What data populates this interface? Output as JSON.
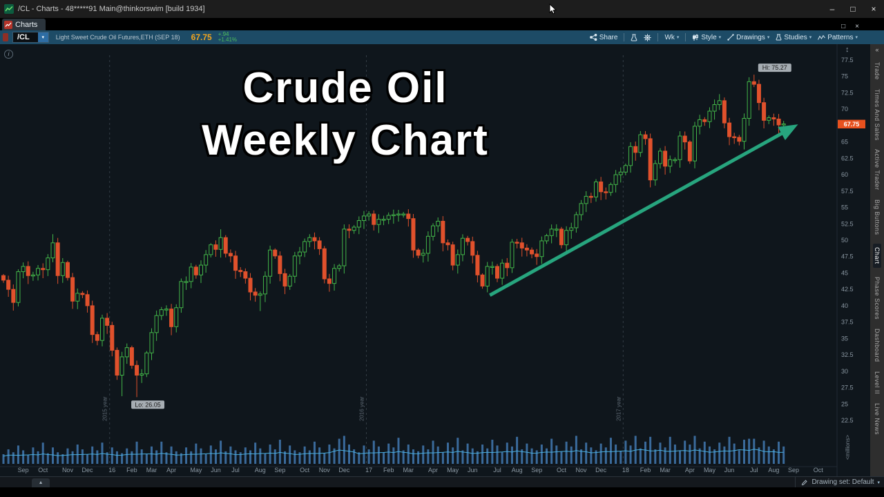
{
  "window": {
    "title": "/CL - Charts - 48*****91 Main@thinkorswim [build 1934]"
  },
  "tabs": {
    "charts": "Charts"
  },
  "toolbar": {
    "symbol": "/CL",
    "description": "Light Sweet Crude Oil Futures,ETH (SEP 18)",
    "last": "67.75",
    "change": "+.94",
    "change_pct": "+1.41%",
    "buttons": {
      "share": "Share",
      "timeframe": "Wk",
      "style": "Style",
      "drawings": "Drawings",
      "studies": "Studies",
      "patterns": "Patterns"
    }
  },
  "overlay": {
    "line1": "Crude Oil",
    "line2": "Weekly Chart"
  },
  "markers": {
    "high": "Hi: 75.27",
    "low": "Lo: 26.05",
    "last_badge": "67.75"
  },
  "axis": {
    "volume_label": "<millions>"
  },
  "sidebar": {
    "items": [
      {
        "label": "Trade",
        "selected": false
      },
      {
        "label": "Times And Sales",
        "selected": false
      },
      {
        "label": "Active Trader",
        "selected": false
      },
      {
        "label": "Big Buttons",
        "selected": false
      },
      {
        "label": "Chart",
        "selected": true
      },
      {
        "label": "Phase Scores",
        "selected": false
      },
      {
        "label": "Dashboard",
        "selected": false
      },
      {
        "label": "Level II",
        "selected": false
      },
      {
        "label": "Live News",
        "selected": false
      }
    ]
  },
  "statusbar": {
    "drawing_set": "Drawing set: Default"
  },
  "icons": {
    "caret_down": "▾",
    "minimize": "–",
    "maximize": "□",
    "close": "×",
    "window_restore": "□",
    "window_close": "×",
    "info": "i",
    "axis_fit": "↕",
    "sidebar_collapse": "«",
    "panel_expander": "▴"
  },
  "colors": {
    "up": "#43b649",
    "down": "#e0512c",
    "volume": "#3a6a9b",
    "volume_line": "#4ab0e0",
    "arrow": "#27a57e",
    "badge": "#e8511e",
    "axis_text": "#8b98a3",
    "grid": "#333d46",
    "toolbar_bg": "#1d4b66",
    "price_text": "#f2a51f",
    "change_text": "#4dbd5c"
  },
  "chart_data": {
    "type": "candlestick",
    "symbol": "/CL",
    "period": "weekly",
    "title": "Crude Oil Weekly Chart",
    "price_axis": {
      "min": 22.5,
      "max": 77.5,
      "step": 2.5
    },
    "last": 67.75,
    "high_marker": {
      "index": 152,
      "value": 75.27
    },
    "low_marker": {
      "index": 27,
      "value": 26.05
    },
    "closes": [
      43.9,
      42.5,
      40.5,
      45.2,
      46.0,
      44.6,
      44.7,
      45.7,
      45.5,
      47.3,
      49.6,
      44.6,
      46.6,
      44.3,
      40.7,
      41.9,
      41.7,
      40.0,
      35.6,
      34.7,
      38.1,
      37.0,
      33.2,
      29.4,
      32.2,
      33.6,
      30.9,
      29.4,
      29.6,
      32.8,
      35.9,
      38.5,
      39.4,
      39.5,
      36.8,
      39.7,
      43.7,
      43.7,
      45.9,
      44.7,
      46.2,
      47.8,
      49.3,
      48.6,
      50.4,
      48.0,
      47.6,
      45.4,
      45.2,
      44.2,
      42.1,
      41.6,
      41.8,
      44.5,
      48.5,
      47.6,
      44.9,
      43.0,
      44.5,
      47.6,
      48.2,
      49.8,
      50.4,
      49.9,
      48.7,
      44.1,
      43.4,
      45.7,
      46.1,
      51.7,
      51.5,
      52.0,
      53.0,
      53.7,
      54.0,
      52.4,
      53.2,
      53.2,
      53.8,
      53.9,
      54.0,
      54.0,
      53.3,
      48.5,
      47.7,
      48.0,
      50.6,
      52.2,
      52.9,
      49.6,
      49.3,
      46.2,
      47.8,
      50.3,
      49.8,
      47.7,
      44.7,
      43.0,
      46.0,
      46.0,
      44.2,
      46.5,
      45.8,
      49.7,
      49.6,
      48.8,
      48.5,
      47.9,
      47.5,
      49.9,
      50.7,
      51.7,
      51.7,
      49.3,
      51.5,
      51.9,
      53.9,
      55.6,
      56.7,
      56.6,
      58.9,
      57.4,
      57.3,
      58.5,
      60.0,
      60.4,
      61.4,
      64.3,
      63.4,
      66.1,
      65.5,
      59.2,
      61.7,
      63.6,
      61.3,
      62.3,
      62.3,
      65.9,
      65.0,
      62.1,
      67.4,
      68.4,
      68.1,
      69.7,
      70.7,
      71.3,
      67.9,
      65.8,
      65.7,
      65.1,
      68.6,
      74.2,
      73.8,
      71.0,
      68.3,
      68.7,
      68.5,
      67.6,
      67.75
    ],
    "volumes": [
      1.0,
      1.5,
      1.2,
      1.9,
      1.4,
      0.9,
      1.7,
      1.3,
      2.2,
      1.1,
      1.7,
      1.2,
      1.0,
      1.6,
      1.3,
      2.0,
      1.5,
      1.0,
      1.8,
      1.4,
      2.2,
      1.2,
      1.7,
      1.3,
      1.1,
      1.6,
      1.3,
      2.3,
      1.5,
      1.0,
      1.8,
      1.4,
      2.3,
      1.2,
      1.8,
      1.3,
      1.1,
      1.7,
      1.3,
      2.1,
      1.6,
      1.0,
      1.9,
      1.5,
      2.4,
      1.3,
      1.8,
      1.4,
      1.2,
      1.7,
      1.4,
      2.2,
      1.6,
      1.1,
      2.0,
      1.5,
      2.5,
      1.3,
      1.9,
      1.4,
      1.2,
      1.8,
      1.4,
      2.3,
      1.7,
      1.1,
      2.0,
      1.6,
      2.6,
      2.9,
      2.0,
      1.5,
      1.2,
      1.9,
      1.5,
      2.4,
      1.8,
      1.2,
      2.1,
      1.7,
      2.7,
      1.4,
      2.0,
      1.5,
      1.3,
      1.9,
      1.5,
      2.4,
      1.8,
      1.2,
      2.2,
      1.7,
      2.7,
      1.4,
      2.1,
      1.6,
      1.3,
      2.0,
      1.6,
      2.5,
      1.9,
      1.2,
      2.2,
      1.8,
      2.8,
      1.5,
      2.1,
      1.6,
      1.4,
      2.0,
      1.6,
      2.6,
      1.9,
      1.3,
      2.3,
      1.8,
      2.9,
      1.5,
      2.2,
      1.7,
      1.4,
      2.1,
      1.7,
      2.7,
      2.0,
      1.3,
      2.4,
      1.9,
      2.9,
      1.6,
      2.3,
      2.8,
      1.5,
      2.2,
      1.7,
      2.8,
      2.0,
      1.4,
      2.4,
      2.0,
      2.9,
      1.6,
      2.3,
      1.8,
      1.5,
      2.2,
      1.8,
      2.8,
      2.1,
      1.4,
      2.5,
      2.6,
      2.6,
      1.7,
      2.4,
      1.8,
      1.5,
      2.3,
      1.8
    ],
    "extremes": {
      "10": {
        "high": 50.92
      },
      "24": {
        "low": 26.19
      },
      "27": {
        "low": 26.05
      },
      "44": {
        "high": 51.67
      },
      "52": {
        "low": 39.19
      },
      "98": {
        "low": 42.05
      },
      "129": {
        "high": 66.66
      },
      "131": {
        "low": 58.07
      },
      "145": {
        "high": 72.3
      },
      "152": {
        "high": 75.27
      }
    },
    "months": [
      {
        "label": "Sep",
        "i": 4
      },
      {
        "label": "Oct",
        "i": 8
      },
      {
        "label": "Nov",
        "i": 13
      },
      {
        "label": "Dec",
        "i": 17
      },
      {
        "label": "16",
        "i": 22
      },
      {
        "label": "Feb",
        "i": 26
      },
      {
        "label": "Mar",
        "i": 30
      },
      {
        "label": "Apr",
        "i": 34
      },
      {
        "label": "May",
        "i": 39
      },
      {
        "label": "Jun",
        "i": 43
      },
      {
        "label": "Jul",
        "i": 47
      },
      {
        "label": "Aug",
        "i": 52
      },
      {
        "label": "Sep",
        "i": 56
      },
      {
        "label": "Oct",
        "i": 61
      },
      {
        "label": "Nov",
        "i": 65
      },
      {
        "label": "Dec",
        "i": 69
      },
      {
        "label": "17",
        "i": 74
      },
      {
        "label": "Feb",
        "i": 78
      },
      {
        "label": "Mar",
        "i": 82
      },
      {
        "label": "Apr",
        "i": 87
      },
      {
        "label": "May",
        "i": 91
      },
      {
        "label": "Jun",
        "i": 95
      },
      {
        "label": "Jul",
        "i": 100
      },
      {
        "label": "Aug",
        "i": 104
      },
      {
        "label": "Sep",
        "i": 108
      },
      {
        "label": "Oct",
        "i": 113
      },
      {
        "label": "Nov",
        "i": 117
      },
      {
        "label": "Dec",
        "i": 121
      },
      {
        "label": "18",
        "i": 126
      },
      {
        "label": "Feb",
        "i": 130
      },
      {
        "label": "Mar",
        "i": 134
      },
      {
        "label": "Apr",
        "i": 139
      },
      {
        "label": "May",
        "i": 143
      },
      {
        "label": "Jun",
        "i": 147
      },
      {
        "label": "Jul",
        "i": 152
      },
      {
        "label": "Aug",
        "i": 156
      },
      {
        "label": "Sep",
        "i": 160
      },
      {
        "label": "Oct",
        "i": 165
      }
    ],
    "year_lines": [
      {
        "label": "2015 year",
        "i": 21.5
      },
      {
        "label": "2016 year",
        "i": 73.5
      },
      {
        "label": "2017 year",
        "i": 125.5
      }
    ],
    "trend_arrow": {
      "from_i": 98.5,
      "from_price": 41.6,
      "to_i": 160,
      "to_price": 67.3
    }
  }
}
